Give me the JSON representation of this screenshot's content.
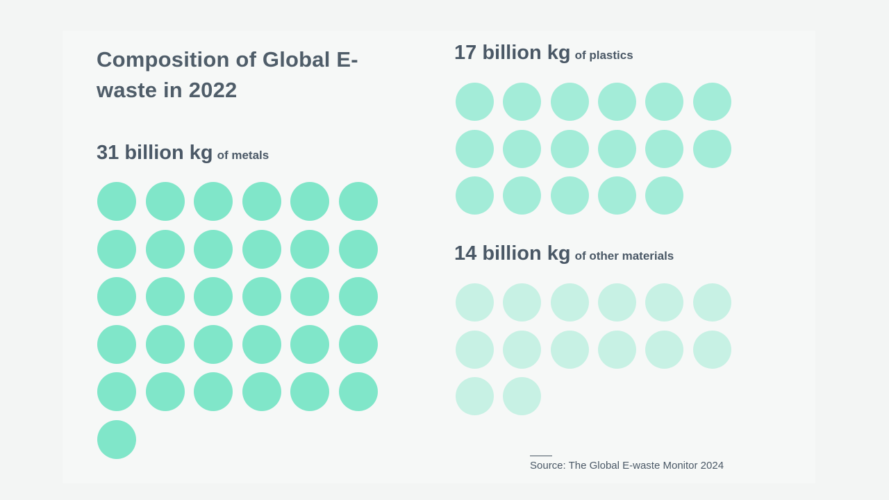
{
  "chart_data": {
    "type": "waffle",
    "title": "Composition of Global E-waste in 2022",
    "unit_per_dot": "1 billion kg",
    "series": [
      {
        "name": "metals",
        "amount_text": "31 billion kg",
        "label_text": "of metals",
        "value": 31,
        "color": "#80e6c9"
      },
      {
        "name": "plastics",
        "amount_text": "17 billion kg",
        "label_text": "of plastics",
        "value": 17,
        "color": "#a3ecd8"
      },
      {
        "name": "other materials",
        "amount_text": "14 billion kg",
        "label_text": "of other materials",
        "value": 14,
        "color": "#c7f1e4"
      }
    ],
    "source": "Source: The Global E-waste Monitor 2024"
  }
}
